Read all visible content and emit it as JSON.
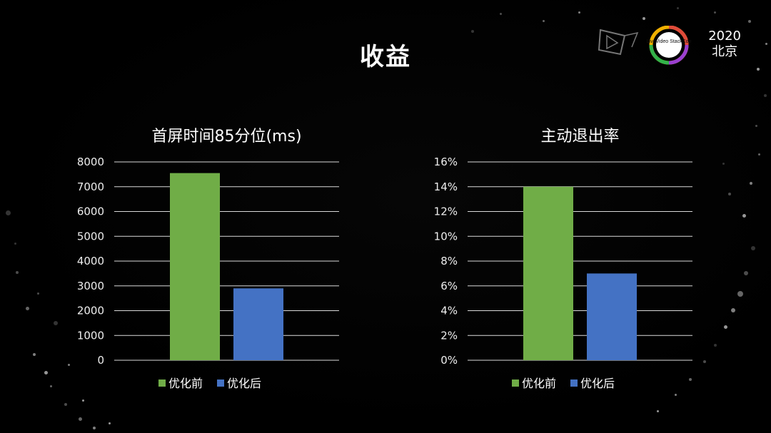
{
  "slide": {
    "title": "收益",
    "event_year": "2020",
    "event_city": "北京",
    "logo_text": "LiveVideo StackCon"
  },
  "colors": {
    "background": "#000000",
    "before": "#70AD47",
    "after": "#4472C4",
    "grid": "#D9D9D9"
  },
  "chart_data": [
    {
      "type": "bar",
      "title": "首屏时间85分位(ms)",
      "categories": [
        "优化前",
        "优化后"
      ],
      "values": [
        7550,
        2900
      ],
      "ylim": [
        0,
        8000
      ],
      "yticks": [
        "0",
        "1000",
        "2000",
        "3000",
        "4000",
        "5000",
        "6000",
        "7000",
        "8000"
      ],
      "legend": [
        "优化前",
        "优化后"
      ],
      "legend_position": "bottom",
      "grid": true
    },
    {
      "type": "bar",
      "title": "主动退出率",
      "categories": [
        "优化前",
        "优化后"
      ],
      "values": [
        14,
        7
      ],
      "ylim": [
        0,
        16
      ],
      "yticks": [
        "0%",
        "2%",
        "4%",
        "6%",
        "8%",
        "10%",
        "12%",
        "14%",
        "16%"
      ],
      "legend": [
        "优化前",
        "优化后"
      ],
      "legend_position": "bottom",
      "grid": true
    }
  ]
}
